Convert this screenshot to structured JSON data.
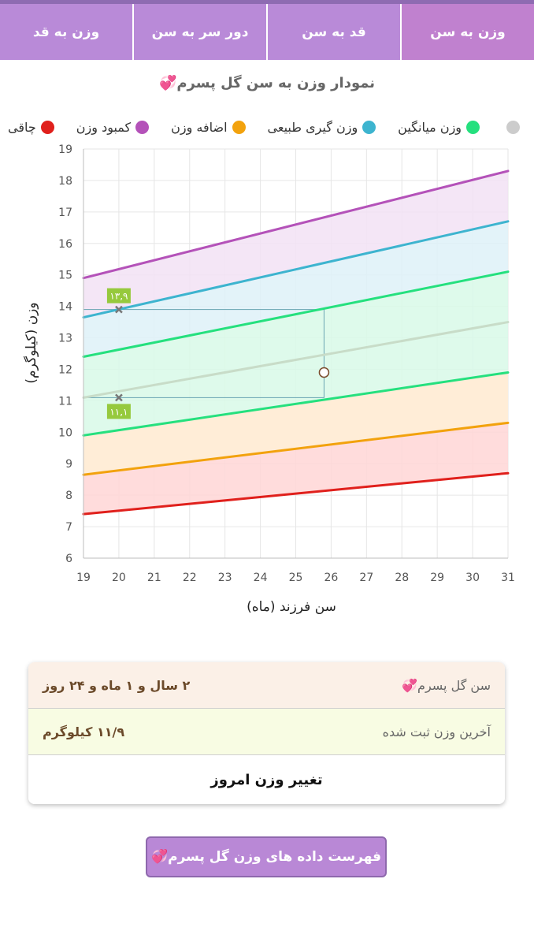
{
  "tabs": [
    {
      "label": "وزن به سن",
      "active": true
    },
    {
      "label": "قد به سن",
      "active": false
    },
    {
      "label": "دور سر به سن",
      "active": false
    },
    {
      "label": "وزن به قد",
      "active": false
    }
  ],
  "chart_title": "نمودار وزن به سن گل پسرم",
  "legend": [
    {
      "label": "چاقی",
      "color": "#e0201c"
    },
    {
      "label": "کمبود وزن",
      "color": "#b452b9"
    },
    {
      "label": "اضافه وزن",
      "color": "#f2a20d"
    },
    {
      "label": "وزن گیری طبیعی",
      "color": "#3db4cf"
    },
    {
      "label": "وزن میانگین",
      "color": "#25e07e"
    },
    {
      "label": "",
      "color": "#cccccc"
    }
  ],
  "chart_data": {
    "type": "line",
    "xlabel": "سن فرزند (ماه)",
    "ylabel": "وزن (کیلوگرم)",
    "xlim": [
      19,
      31
    ],
    "ylim": [
      6,
      19
    ],
    "x_ticks": [
      19,
      20,
      21,
      22,
      23,
      24,
      25,
      26,
      27,
      28,
      29,
      30,
      31
    ],
    "y_ticks": [
      6,
      7,
      8,
      9,
      10,
      11,
      12,
      13,
      14,
      15,
      16,
      17,
      18,
      19
    ],
    "grid": true,
    "series": [
      {
        "color": "#e0201c",
        "x": [
          19,
          31
        ],
        "y": [
          7.4,
          8.7
        ]
      },
      {
        "color": "#f2a20d",
        "x": [
          19,
          31
        ],
        "y": [
          8.65,
          10.3
        ]
      },
      {
        "color": "#25e07e",
        "x": [
          19,
          31
        ],
        "y": [
          9.9,
          11.9
        ]
      },
      {
        "color": "#c8dcc8",
        "x": [
          19,
          31
        ],
        "y": [
          11.1,
          13.5
        ]
      },
      {
        "color": "#25e07e",
        "x": [
          19,
          31
        ],
        "y": [
          12.4,
          15.1
        ]
      },
      {
        "color": "#3db4cf",
        "x": [
          19,
          31
        ],
        "y": [
          13.65,
          16.7
        ]
      },
      {
        "color": "#b452b9",
        "x": [
          19,
          31
        ],
        "y": [
          14.9,
          18.3
        ]
      }
    ],
    "bands": [
      {
        "lower": 0,
        "upper": 2,
        "color": "#ffd6d6"
      },
      {
        "lower": 1,
        "upper": 2,
        "color": "#fff0d6"
      },
      {
        "lower": 2,
        "upper": 4,
        "color": "#d8f9e8"
      },
      {
        "lower": 4,
        "upper": 5,
        "color": "#def1f8"
      },
      {
        "lower": 5,
        "upper": 6,
        "color": "#f2e2f4"
      }
    ],
    "range_box": {
      "x": [
        19,
        25.8
      ],
      "y": [
        11.1,
        13.9
      ]
    },
    "marks": [
      {
        "x": 20,
        "y": 13.9,
        "label": "۱۳,۹",
        "label_pos": "above"
      },
      {
        "x": 20,
        "y": 11.1,
        "label": "۱۱,۱",
        "label_pos": "below"
      }
    ],
    "point": {
      "x": 25.8,
      "y": 11.9
    }
  },
  "info_card": {
    "age_label": "سن گل پسرم",
    "age_value": "۲ سال و ۱ ماه و ۲۴ روز",
    "last_weight_label": "آخرین وزن ثبت شده",
    "last_weight_value": "۱۱/۹ کیلوگرم",
    "change_button": "تغییر وزن امروز"
  },
  "list_button": "فهرست داده های وزن گل پسرم",
  "heart_icon": "heart-icon"
}
